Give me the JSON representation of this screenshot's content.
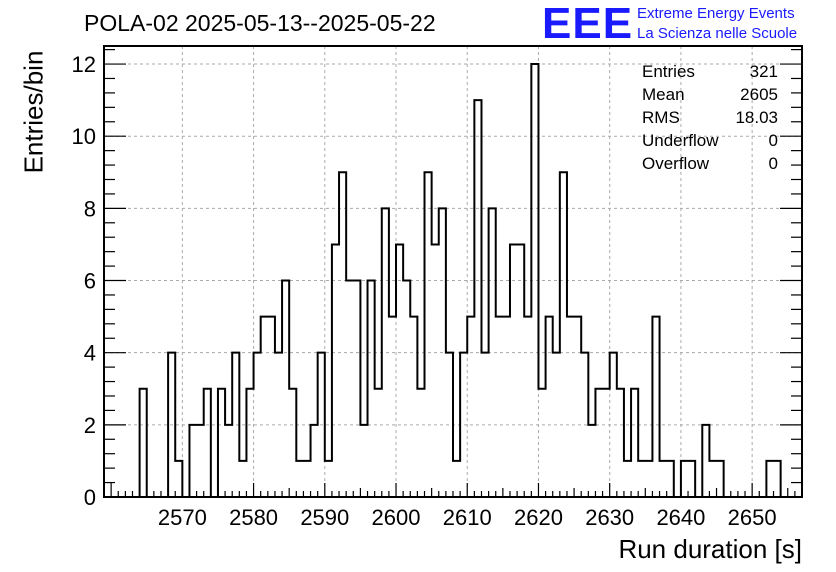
{
  "title": "POLA-02 2025-05-13--2025-05-22",
  "logo": {
    "mark": "EEE",
    "line1": "Extreme Energy Events",
    "line2": "La Scienza nelle Scuole",
    "color": "#1a1aff"
  },
  "stats": [
    {
      "label": "Entries",
      "value": "321"
    },
    {
      "label": "Mean",
      "value": "2605"
    },
    {
      "label": "RMS",
      "value": "18.03"
    },
    {
      "label": "Underflow",
      "value": "0"
    },
    {
      "label": "Overflow",
      "value": "0"
    }
  ],
  "chart_data": {
    "type": "histogram",
    "xlabel": "Run duration [s]",
    "ylabel": "Entries/bin",
    "xlim": [
      2559,
      2657
    ],
    "ylim": [
      0,
      12.5
    ],
    "bin_width": 1,
    "x_ticks": [
      2570,
      2580,
      2590,
      2600,
      2610,
      2620,
      2630,
      2640,
      2650
    ],
    "y_ticks": [
      0,
      2,
      4,
      6,
      8,
      10,
      12
    ],
    "grid": true,
    "line_color": "#000000",
    "bins": [
      {
        "x": 2563,
        "y": 0
      },
      {
        "x": 2564,
        "y": 3
      },
      {
        "x": 2565,
        "y": 0
      },
      {
        "x": 2566,
        "y": 0
      },
      {
        "x": 2567,
        "y": 0
      },
      {
        "x": 2568,
        "y": 4
      },
      {
        "x": 2569,
        "y": 1
      },
      {
        "x": 2570,
        "y": 0
      },
      {
        "x": 2571,
        "y": 2
      },
      {
        "x": 2572,
        "y": 2
      },
      {
        "x": 2573,
        "y": 3
      },
      {
        "x": 2574,
        "y": 0
      },
      {
        "x": 2575,
        "y": 3
      },
      {
        "x": 2576,
        "y": 2
      },
      {
        "x": 2577,
        "y": 4
      },
      {
        "x": 2578,
        "y": 1
      },
      {
        "x": 2579,
        "y": 3
      },
      {
        "x": 2580,
        "y": 4
      },
      {
        "x": 2581,
        "y": 5
      },
      {
        "x": 2582,
        "y": 5
      },
      {
        "x": 2583,
        "y": 4
      },
      {
        "x": 2584,
        "y": 6
      },
      {
        "x": 2585,
        "y": 3
      },
      {
        "x": 2586,
        "y": 1
      },
      {
        "x": 2587,
        "y": 1
      },
      {
        "x": 2588,
        "y": 2
      },
      {
        "x": 2589,
        "y": 4
      },
      {
        "x": 2590,
        "y": 1
      },
      {
        "x": 2591,
        "y": 7
      },
      {
        "x": 2592,
        "y": 9
      },
      {
        "x": 2593,
        "y": 6
      },
      {
        "x": 2594,
        "y": 6
      },
      {
        "x": 2595,
        "y": 2
      },
      {
        "x": 2596,
        "y": 6
      },
      {
        "x": 2597,
        "y": 3
      },
      {
        "x": 2598,
        "y": 8
      },
      {
        "x": 2599,
        "y": 5
      },
      {
        "x": 2600,
        "y": 7
      },
      {
        "x": 2601,
        "y": 6
      },
      {
        "x": 2602,
        "y": 5
      },
      {
        "x": 2603,
        "y": 3
      },
      {
        "x": 2604,
        "y": 9
      },
      {
        "x": 2605,
        "y": 7
      },
      {
        "x": 2606,
        "y": 8
      },
      {
        "x": 2607,
        "y": 4
      },
      {
        "x": 2608,
        "y": 1
      },
      {
        "x": 2609,
        "y": 4
      },
      {
        "x": 2610,
        "y": 5
      },
      {
        "x": 2611,
        "y": 11
      },
      {
        "x": 2612,
        "y": 4
      },
      {
        "x": 2613,
        "y": 8
      },
      {
        "x": 2614,
        "y": 5
      },
      {
        "x": 2615,
        "y": 5
      },
      {
        "x": 2616,
        "y": 7
      },
      {
        "x": 2617,
        "y": 7
      },
      {
        "x": 2618,
        "y": 5
      },
      {
        "x": 2619,
        "y": 12
      },
      {
        "x": 2620,
        "y": 3
      },
      {
        "x": 2621,
        "y": 5
      },
      {
        "x": 2622,
        "y": 4
      },
      {
        "x": 2623,
        "y": 9
      },
      {
        "x": 2624,
        "y": 5
      },
      {
        "x": 2625,
        "y": 5
      },
      {
        "x": 2626,
        "y": 4
      },
      {
        "x": 2627,
        "y": 2
      },
      {
        "x": 2628,
        "y": 3
      },
      {
        "x": 2629,
        "y": 3
      },
      {
        "x": 2630,
        "y": 4
      },
      {
        "x": 2631,
        "y": 3
      },
      {
        "x": 2632,
        "y": 1
      },
      {
        "x": 2633,
        "y": 3
      },
      {
        "x": 2634,
        "y": 1
      },
      {
        "x": 2635,
        "y": 1
      },
      {
        "x": 2636,
        "y": 5
      },
      {
        "x": 2637,
        "y": 1
      },
      {
        "x": 2638,
        "y": 1
      },
      {
        "x": 2639,
        "y": 0
      },
      {
        "x": 2640,
        "y": 1
      },
      {
        "x": 2641,
        "y": 1
      },
      {
        "x": 2642,
        "y": 0
      },
      {
        "x": 2643,
        "y": 2
      },
      {
        "x": 2644,
        "y": 1
      },
      {
        "x": 2645,
        "y": 1
      },
      {
        "x": 2646,
        "y": 0
      },
      {
        "x": 2647,
        "y": 0
      },
      {
        "x": 2648,
        "y": 0
      },
      {
        "x": 2649,
        "y": 0
      },
      {
        "x": 2650,
        "y": 0
      },
      {
        "x": 2651,
        "y": 0
      },
      {
        "x": 2652,
        "y": 1
      },
      {
        "x": 2653,
        "y": 1
      }
    ]
  }
}
